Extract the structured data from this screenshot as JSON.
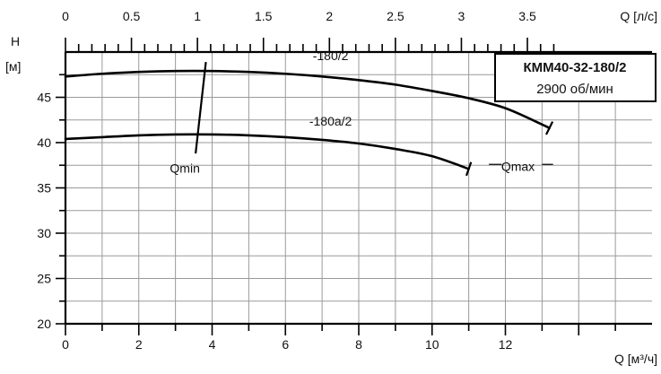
{
  "chart_data": {
    "type": "line",
    "title": "КММ40-32-180/2",
    "subtitle": "2900 об/мин",
    "x_top": {
      "label": "Q [л/с]",
      "ticks": [
        0,
        0.5,
        1,
        1.5,
        2,
        2.5,
        3,
        3.5
      ],
      "tick_labels": [
        "0",
        "0.5",
        "1",
        "1.5",
        "2",
        "2.5",
        "3",
        "3.5"
      ]
    },
    "x_bottom": {
      "label": "Q [м³/ч]",
      "ticks": [
        0,
        2,
        4,
        6,
        8,
        10,
        12
      ],
      "tick_labels": [
        "0",
        "2",
        "4",
        "6",
        "8",
        "10",
        "12"
      ],
      "range": [
        0,
        16
      ]
    },
    "y": {
      "label_top": "H",
      "label_unit": "[м]",
      "ticks": [
        20,
        25,
        30,
        35,
        40,
        45
      ],
      "tick_labels": [
        "20",
        "25",
        "30",
        "35",
        "40",
        "45"
      ],
      "range": [
        20,
        50
      ]
    },
    "grid": true,
    "series": [
      {
        "name": "-180/2",
        "x": [
          0,
          1,
          2,
          3,
          4,
          5,
          6,
          7,
          8,
          9,
          10,
          11,
          12,
          13,
          13.2
        ],
        "y": [
          47.3,
          47.6,
          47.8,
          47.9,
          47.9,
          47.8,
          47.6,
          47.3,
          46.9,
          46.4,
          45.7,
          44.9,
          43.8,
          42.0,
          41.6
        ]
      },
      {
        "name": "-180a/2",
        "x": [
          0,
          1,
          2,
          3,
          4,
          5,
          6,
          7,
          8,
          9,
          10,
          11
        ],
        "y": [
          40.4,
          40.6,
          40.8,
          40.9,
          40.9,
          40.8,
          40.6,
          40.3,
          39.9,
          39.3,
          38.5,
          37.1
        ]
      }
    ],
    "annotations": [
      {
        "text": "Qmin",
        "x": 3.6
      },
      {
        "text": "Qmax",
        "x": 12.0
      }
    ]
  }
}
